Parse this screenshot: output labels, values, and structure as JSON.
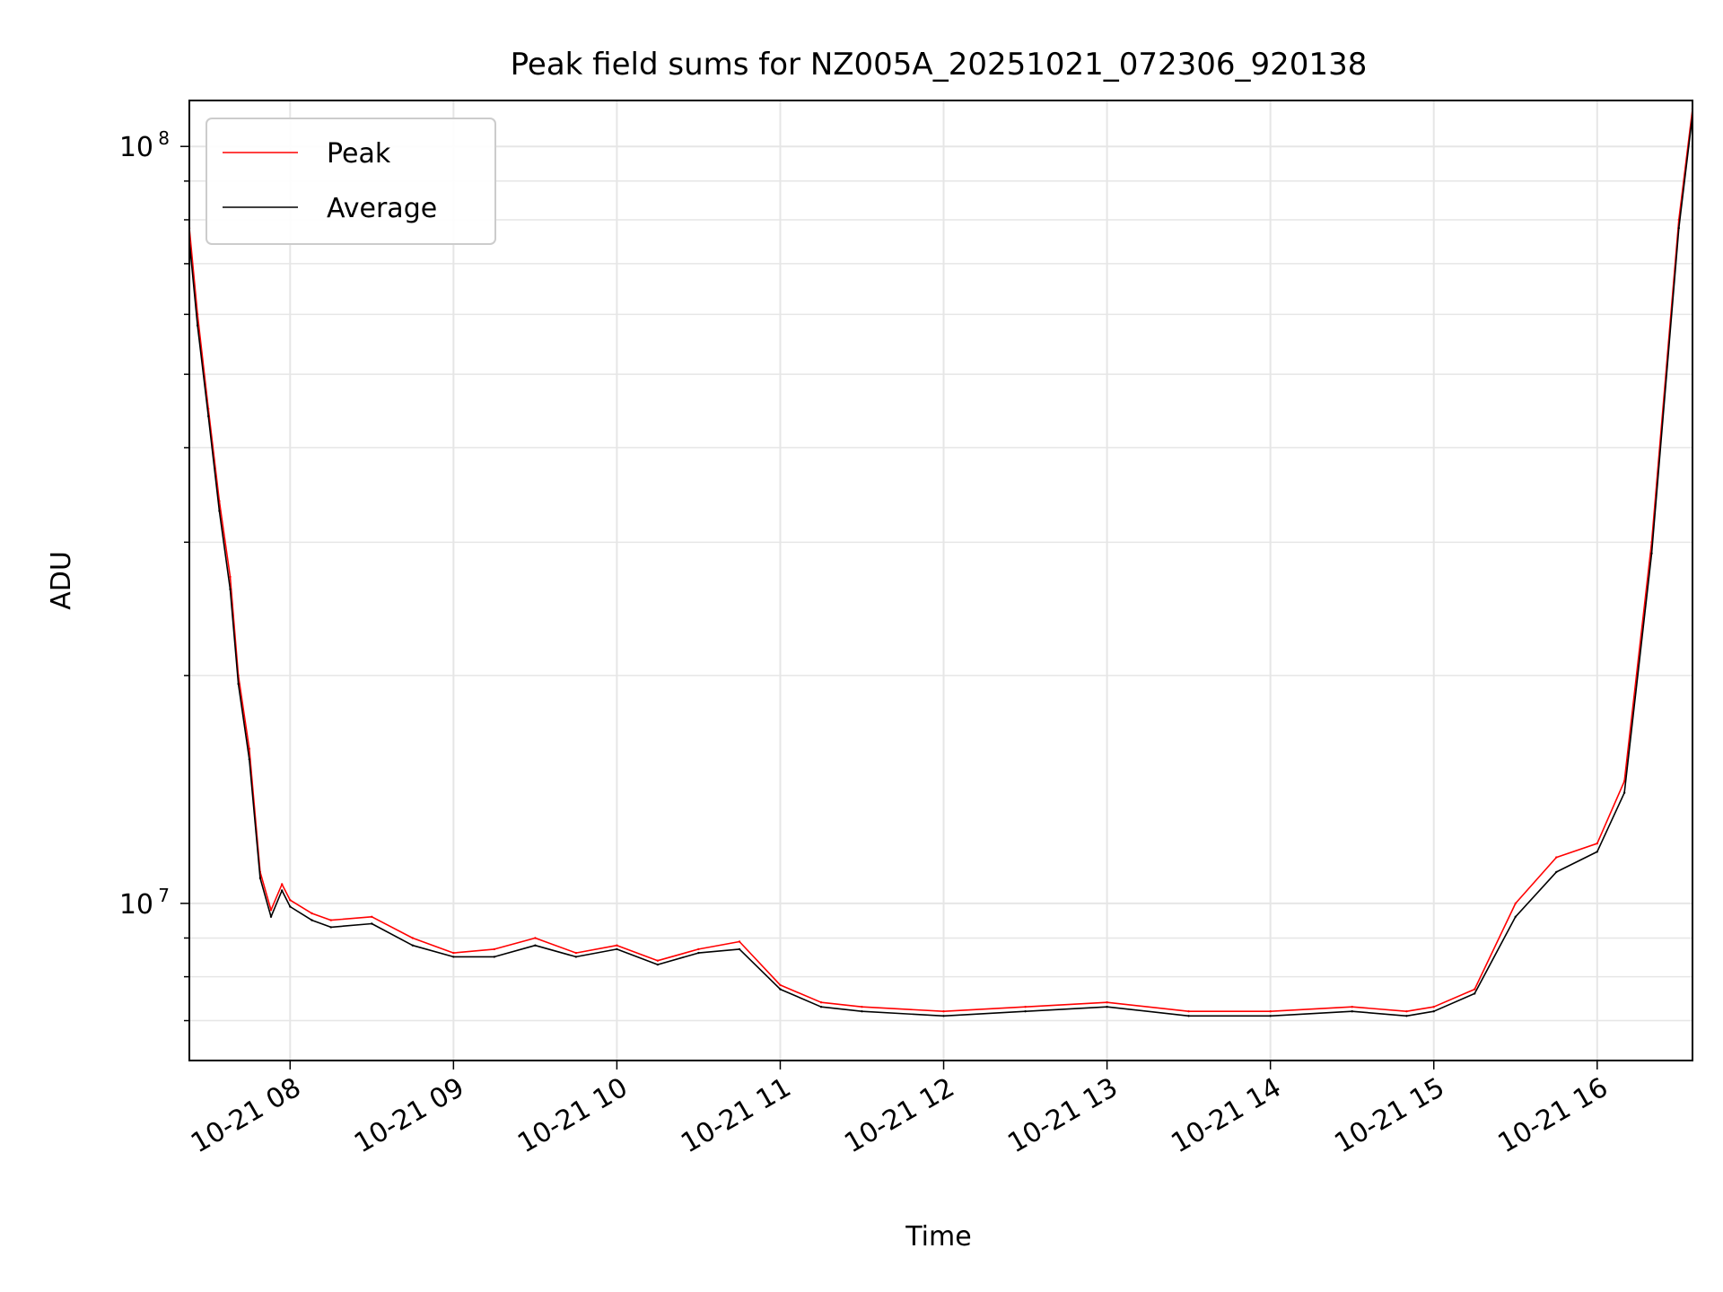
{
  "chart_data": {
    "type": "line",
    "title": "Peak field sums for NZ005A_20251021_072306_920138",
    "xlabel": "Time",
    "ylabel": "ADU",
    "x_scale": "time",
    "y_scale": "log",
    "xlim": [
      "2025-10-21 07:23",
      "2025-10-21 16:35"
    ],
    "ylim": [
      6200000,
      115000000
    ],
    "grid": true,
    "legend_position": "upper-left",
    "x_ticks": [
      "10-21 08",
      "10-21 09",
      "10-21 10",
      "10-21 11",
      "10-21 12",
      "10-21 13",
      "10-21 14",
      "10-21 15",
      "10-21 16"
    ],
    "y_ticks": [
      "10^7",
      "10^8"
    ],
    "series": [
      {
        "name": "Peak",
        "color": "#ff0000",
        "x": [
          "07:23",
          "07:26",
          "07:30",
          "07:34",
          "07:38",
          "07:41",
          "07:45",
          "07:49",
          "07:53",
          "07:57",
          "08:00",
          "08:08",
          "08:15",
          "08:30",
          "08:45",
          "09:00",
          "09:15",
          "09:30",
          "09:45",
          "10:00",
          "10:15",
          "10:30",
          "10:45",
          "11:00",
          "11:15",
          "11:30",
          "12:00",
          "12:30",
          "13:00",
          "13:30",
          "14:00",
          "14:30",
          "14:50",
          "15:00",
          "15:15",
          "15:30",
          "15:45",
          "16:00",
          "16:10",
          "16:20",
          "16:30",
          "16:35"
        ],
        "y": [
          78000000,
          60000000,
          45000000,
          34000000,
          27000000,
          20000000,
          16000000,
          11000000,
          9800000,
          10600000,
          10100000,
          9700000,
          9500000,
          9600000,
          9000000,
          8600000,
          8700000,
          9000000,
          8600000,
          8800000,
          8400000,
          8700000,
          8900000,
          7800000,
          7400000,
          7300000,
          7200000,
          7300000,
          7400000,
          7200000,
          7200000,
          7300000,
          7200000,
          7300000,
          7700000,
          10000000,
          11500000,
          12000000,
          14500000,
          30000000,
          80000000,
          112000000
        ]
      },
      {
        "name": "Average",
        "color": "#000000",
        "x": [
          "07:23",
          "07:26",
          "07:30",
          "07:34",
          "07:38",
          "07:41",
          "07:45",
          "07:49",
          "07:53",
          "07:57",
          "08:00",
          "08:08",
          "08:15",
          "08:30",
          "08:45",
          "09:00",
          "09:15",
          "09:30",
          "09:45",
          "10:00",
          "10:15",
          "10:30",
          "10:45",
          "11:00",
          "11:15",
          "11:30",
          "12:00",
          "12:30",
          "13:00",
          "13:30",
          "14:00",
          "14:30",
          "14:50",
          "15:00",
          "15:15",
          "15:30",
          "15:45",
          "16:00",
          "16:10",
          "16:20",
          "16:30",
          "16:35"
        ],
        "y": [
          75000000,
          58000000,
          44000000,
          33000000,
          26000000,
          19500000,
          15500000,
          10800000,
          9600000,
          10400000,
          9900000,
          9500000,
          9300000,
          9400000,
          8800000,
          8500000,
          8500000,
          8800000,
          8500000,
          8700000,
          8300000,
          8600000,
          8700000,
          7700000,
          7300000,
          7200000,
          7100000,
          7200000,
          7300000,
          7100000,
          7100000,
          7200000,
          7100000,
          7200000,
          7600000,
          9600000,
          11000000,
          11700000,
          14000000,
          29000000,
          78000000,
          110000000
        ]
      }
    ]
  }
}
